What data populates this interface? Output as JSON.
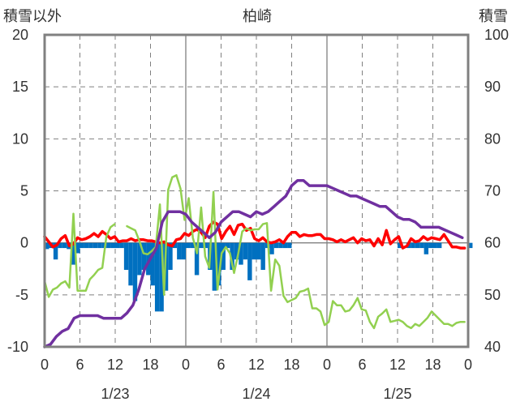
{
  "chart_data": {
    "type": "line",
    "title": "柏崎",
    "y_left_label": "積雪以外",
    "y_right_label": "積雪",
    "y_left_ticks": [
      "20",
      "15",
      "10",
      "5",
      "0",
      "-5",
      "-10"
    ],
    "y_right_ticks": [
      "100",
      "90",
      "80",
      "70",
      "60",
      "50",
      "40"
    ],
    "y_left_range": [
      -10,
      20
    ],
    "y_right_range": [
      40,
      100
    ],
    "x_hour_ticks": [
      "0",
      "6",
      "12",
      "18",
      "0",
      "6",
      "12",
      "18",
      "0",
      "6",
      "12",
      "18",
      "0"
    ],
    "x_date_labels": [
      "1/23",
      "1/24",
      "1/25"
    ],
    "x_range_hours": [
      0,
      72
    ],
    "grid": "dashed vertical at 6-hour marks, dashed horizontal at 5-unit marks; solid at day boundaries and at zero",
    "colors": {
      "precip_bars": "#0070c0",
      "temperature": "#ff0000",
      "green_series": "#92d050",
      "snow_depth": "#7030a0",
      "grid": "#808080",
      "frame": "#808080"
    },
    "series": [
      {
        "axis": "left",
        "kind": "bar",
        "values": [
          -0.6,
          -0.5,
          -1.6,
          -0.5,
          -0.5,
          -0.6,
          -2.1,
          -1.0,
          -0.5,
          -0.5,
          -0.5,
          -0.5,
          -0.5,
          -0.5,
          -0.5,
          -0.5,
          -0.5,
          -0.5,
          -2.6,
          -4.1,
          -5.6,
          -3.1,
          -2.6,
          -3.1,
          -4.1,
          -6.6,
          -6.6,
          -4.6,
          -2.6,
          -0.5,
          -1.6,
          -1.6,
          -0.5,
          -0.5,
          -3.1,
          -0.5,
          -0.5,
          -2.6,
          -4.6,
          -4.1,
          -2.6,
          -0.5,
          -2.6,
          -1.6,
          -2.1,
          -1.6,
          -3.6,
          -1.6,
          -1.6,
          -2.6,
          -0.5,
          -1.1,
          -0.5,
          -0.5,
          -0.5,
          -0.5,
          0,
          0,
          0,
          0,
          0,
          0,
          0,
          0,
          0,
          0,
          0,
          0,
          0,
          0,
          0,
          0,
          0,
          0,
          0,
          0,
          0,
          0,
          0,
          0,
          -0.5,
          0,
          -0.5,
          -0.5,
          -0.5,
          -0.5,
          -1.1,
          -0.5,
          -0.5,
          -0.5,
          0,
          0,
          0,
          0,
          0,
          0,
          -0.5
        ]
      },
      {
        "axis": "left",
        "kind": "line",
        "x": [
          0,
          0.7,
          1.4,
          2.1,
          2.8,
          3.5,
          4.2,
          4.9,
          5.6,
          6.3,
          7,
          7.7,
          8.4,
          9.1,
          9.8,
          10.5,
          11.2,
          11.9,
          12.6,
          13.3,
          14,
          14.7,
          15.4,
          16.1,
          16.8,
          17.5,
          18.2,
          18.9,
          19.6,
          20.3,
          21,
          21.7,
          22.4,
          23.1,
          23.8,
          24.5,
          25.2,
          25.9,
          26.6,
          27.3,
          28,
          28.7,
          29.4,
          30.1,
          30.8,
          31.5,
          32.2,
          32.9,
          33.6,
          34.3,
          35,
          35.7,
          36.4,
          37.1,
          37.8,
          38.5,
          39.2,
          39.9,
          40.6,
          41.3,
          42,
          42.7,
          43.4,
          44.1,
          44.8,
          45.5,
          46.2,
          46.9,
          47.6,
          48.3,
          49,
          49.7,
          50.4,
          51.1,
          51.8,
          52.5,
          53.2,
          53.9,
          54.6,
          55.3,
          56,
          56.7,
          57.4,
          58.1,
          58.8,
          59.5,
          60.2,
          60.9,
          61.6,
          62.3,
          63,
          63.7,
          64.4,
          65.1,
          65.8,
          66.5,
          67.2,
          67.9,
          68.6,
          69.3,
          70,
          70.7,
          71.4
        ],
        "values": [
          0.6,
          0.1,
          -0.4,
          -0.2,
          0.4,
          0.7,
          -0.3,
          -0.1,
          0.5,
          0.3,
          0.4,
          0.6,
          0.9,
          0.6,
          1.1,
          0.8,
          0.4,
          0.6,
          0.1,
          0.2,
          0.2,
          0.4,
          0.2,
          0.3,
          0.3,
          0.2,
          0.2,
          0.1,
          0,
          0.1,
          -0.2,
          -0.3,
          0.3,
          0.4,
          0.9,
          0.7,
          1.1,
          1.3,
          1.0,
          0.5,
          1.6,
          2.0,
          1.8,
          0.4,
          1.1,
          1.6,
          0.8,
          1.7,
          1.8,
          1.2,
          1.4,
          0.4,
          0.2,
          0.5,
          0.1,
          0,
          0.1,
          0.3,
          0,
          0.6,
          1.0,
          1.0,
          0.6,
          0.8,
          0.7,
          0.7,
          0.8,
          0.8,
          0.4,
          0.4,
          0.3,
          0.1,
          0.3,
          0.1,
          0.3,
          0.5,
          0,
          0.4,
          0.2,
          0.3,
          -0.3,
          0.4,
          -0.2,
          1.2,
          -0.1,
          0.3,
          0.6,
          -0.5,
          -0.3,
          0.4,
          0.1,
          0.2,
          0.6,
          0.3,
          0.5,
          0.4,
          0.3,
          0.8,
          0.2,
          -0.4,
          -0.4,
          -0.5,
          -0.5
        ]
      },
      {
        "axis": "left",
        "kind": "line",
        "x": [
          0,
          0.7,
          1.4,
          2.1,
          2.8,
          3.5,
          4.2,
          4.9,
          5.6,
          6.3,
          7,
          7.7,
          8.4,
          9.1,
          9.8,
          10.5,
          11.2,
          11.9,
          12.6,
          13.3,
          14,
          14.7,
          15.4,
          16.1,
          16.8,
          17.5,
          18.2,
          18.9,
          19.6,
          20.3,
          21,
          21.7,
          22.4,
          23.1,
          23.8,
          24.5,
          25.2,
          25.9,
          26.6,
          27.3,
          28,
          28.7,
          29.4,
          30.1,
          30.8,
          31.5,
          32.2,
          32.9,
          33.6,
          34.3,
          35,
          35.7,
          36.4,
          37.1,
          37.8,
          38.5,
          39.2,
          39.9,
          40.6,
          41.3,
          42,
          42.7,
          43.4,
          44.1,
          44.8,
          45.5,
          46.2,
          46.9,
          47.6,
          48.3,
          49,
          49.7,
          50.4,
          51.1,
          51.8,
          52.5,
          53.2,
          53.9,
          54.6,
          55.3,
          56,
          56.7,
          57.4,
          58.1,
          58.8,
          59.5,
          60.2,
          60.9,
          61.6,
          62.3,
          63,
          63.7,
          64.4,
          65.1,
          65.8,
          66.5,
          67.2,
          67.9,
          68.6,
          69.3,
          70,
          70.7,
          71.4
        ],
        "values": [
          -3.7,
          -5.2,
          -4.5,
          -4.3,
          -3.9,
          -3.7,
          -4.3,
          2.8,
          -4.6,
          -4.6,
          -4.6,
          -3.5,
          -3.1,
          -2.6,
          -2.4,
          0.6,
          1.5,
          1.8,
          null,
          null,
          1.6,
          1.4,
          1.2,
          0.2,
          -1.0,
          -1.1,
          -0.8,
          -0.4,
          3.7,
          -5.0,
          5.1,
          6.3,
          6.5,
          5.2,
          2.2,
          4.3,
          0.5,
          -1.0,
          3.4,
          -1.3,
          -2.4,
          4.9,
          -4.5,
          -1.0,
          -0.4,
          -1.0,
          -2.9,
          -1.1,
          1.1,
          1.4,
          1.2,
          1.3,
          1.3,
          1.8,
          1.9,
          -4.6,
          -1.6,
          -2.2,
          -5.1,
          -5.7,
          -5.5,
          -5.3,
          -4.7,
          -4.6,
          -4.4,
          -6.3,
          -6.3,
          -6.6,
          -7.9,
          -7.6,
          -5.6,
          -6.0,
          -6.0,
          -6.6,
          -6.5,
          -6.0,
          -5.3,
          -6.4,
          -6.5,
          -7.6,
          -8.2,
          -7.1,
          -6.8,
          -6.4,
          -7.6,
          -7.5,
          -7.4,
          -7.6,
          -8.0,
          -8.2,
          -7.8,
          -8.0,
          -7.6,
          -7.2,
          -6.6,
          -7.0,
          -7.4,
          -7.8,
          -7.8,
          -8.0,
          -7.7,
          -7.6,
          -7.6
        ]
      },
      {
        "axis": "right",
        "kind": "line",
        "x": [
          0,
          1,
          2,
          3,
          4,
          5,
          6,
          7,
          8,
          9,
          10,
          11,
          12,
          13,
          14,
          15,
          16,
          17,
          18,
          19,
          20,
          21,
          22,
          23,
          24,
          25,
          26,
          27,
          28,
          29,
          30,
          31,
          32,
          33,
          34,
          35,
          36,
          37,
          38,
          39,
          40,
          41,
          42,
          43,
          44,
          45,
          46,
          47,
          48,
          49,
          50,
          51,
          52,
          53,
          54,
          55,
          56,
          57,
          58,
          59,
          60,
          61,
          62,
          63,
          64,
          65,
          66,
          67,
          68,
          69,
          70,
          71
        ],
        "values": [
          40,
          40.5,
          42,
          43,
          43.5,
          45.5,
          46,
          46,
          46,
          46,
          45.5,
          45.5,
          45.5,
          45.5,
          46.5,
          48,
          51,
          55,
          57,
          59,
          64,
          66,
          66,
          66,
          65.5,
          64,
          63,
          62,
          61,
          62,
          64,
          65,
          66,
          66,
          65.5,
          65,
          66,
          65.5,
          66,
          67,
          68,
          69,
          71,
          72,
          72,
          71,
          71,
          71,
          71,
          70.5,
          70,
          69.5,
          69,
          69,
          68.5,
          68,
          67.5,
          67,
          67,
          66,
          65,
          64.5,
          64.5,
          64,
          63,
          63,
          63,
          63,
          62.5,
          62,
          61.5,
          61
        ]
      }
    ]
  }
}
